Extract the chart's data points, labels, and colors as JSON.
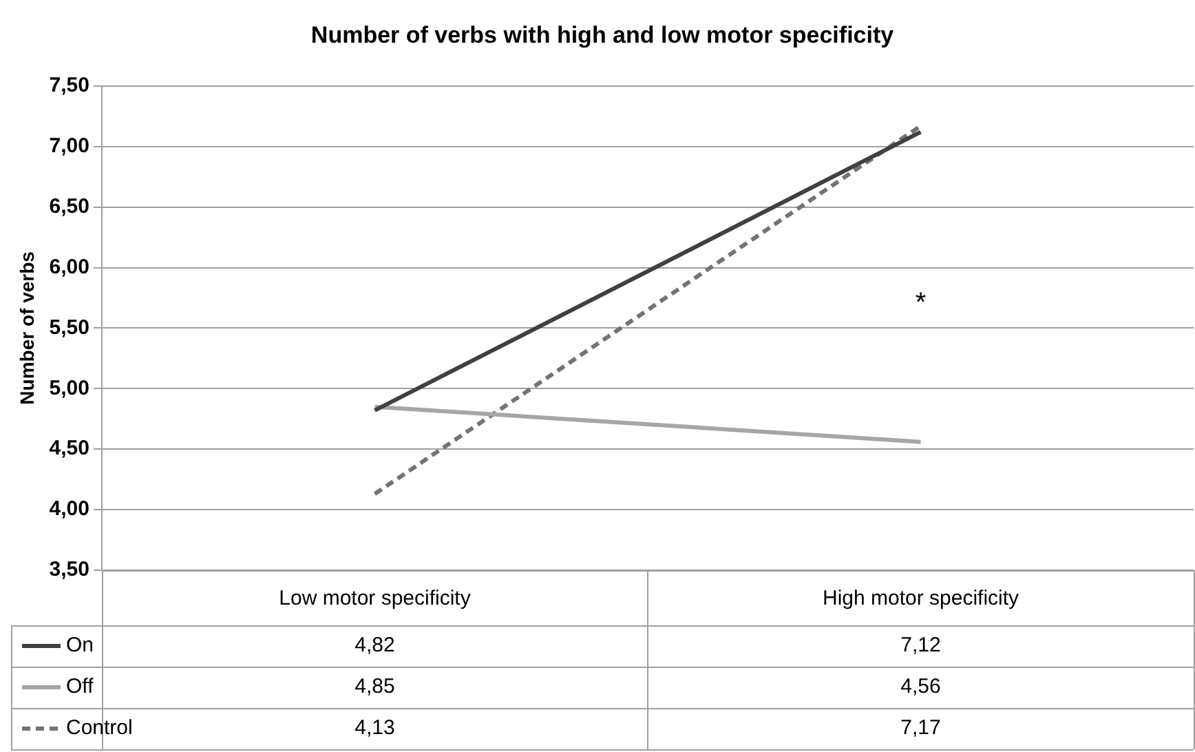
{
  "chart_data": {
    "type": "line",
    "title": "Number of verbs with high and low motor specificity",
    "ylabel": "Number of verbs",
    "categories": [
      "Low motor specificity",
      "High motor specificity"
    ],
    "series": [
      {
        "name": "On",
        "color": "#404040",
        "values": [
          4.82,
          7.12
        ],
        "value_labels": [
          "4,82",
          "7,12"
        ],
        "line_style": "solid"
      },
      {
        "name": "Off",
        "color": "#a6a6a6",
        "values": [
          4.85,
          4.56
        ],
        "value_labels": [
          "4,85",
          "4,56"
        ],
        "line_style": "solid"
      },
      {
        "name": "Control",
        "color": "#737373",
        "values": [
          4.13,
          7.17
        ],
        "value_labels": [
          "4,13",
          "7,17"
        ],
        "line_style": "dashed"
      }
    ],
    "ylim": [
      3.5,
      7.5
    ],
    "yticks": [
      {
        "value": 3.5,
        "label": "3,50"
      },
      {
        "value": 4,
        "label": "4,00"
      },
      {
        "value": 4.5,
        "label": "4,50"
      },
      {
        "value": 5,
        "label": "5,00"
      },
      {
        "value": 5.5,
        "label": "5,50"
      },
      {
        "value": 6,
        "label": "6,00"
      },
      {
        "value": 6.5,
        "label": "6,50"
      },
      {
        "value": 7,
        "label": "7,00"
      },
      {
        "value": 7.5,
        "label": "7,50"
      }
    ],
    "annotations": [
      "*"
    ],
    "grid": "y",
    "legend": "bottom",
    "marker": "none"
  }
}
